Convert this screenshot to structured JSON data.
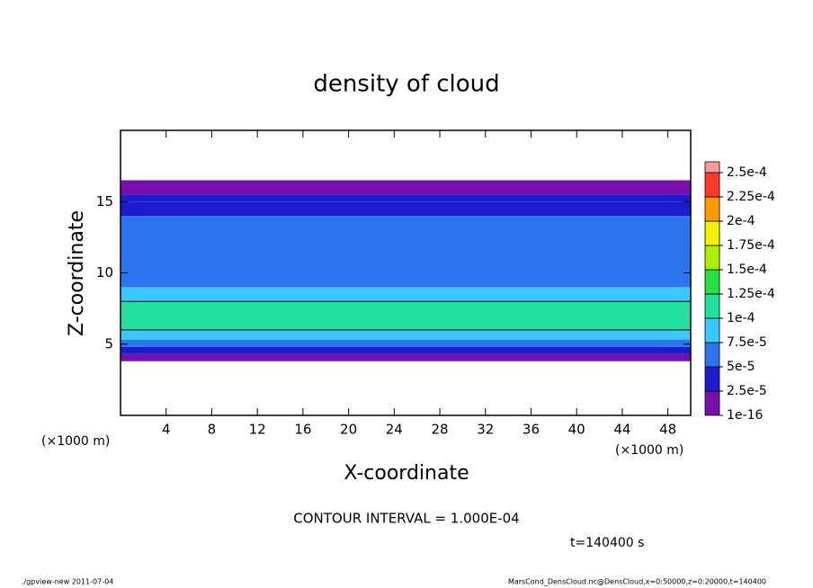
{
  "chart_data": {
    "type": "heatmap_profile",
    "title": "density of cloud",
    "xlabel": "X-coordinate",
    "ylabel": "Z-coordinate",
    "x_unit": "(×1000 m)",
    "y_unit": "(×1000 m)",
    "xlim": [
      0,
      50
    ],
    "ylim": [
      0,
      20
    ],
    "xticks": [
      4,
      8,
      12,
      16,
      20,
      24,
      28,
      32,
      36,
      40,
      44,
      48
    ],
    "yticks": [
      5,
      10,
      15
    ],
    "z": [
      3.8,
      4.3,
      4.8,
      5.3,
      6.0,
      8.0,
      9.0,
      14.0,
      15.0,
      15.5,
      16.5
    ],
    "density": [
      1e-05,
      3e-05,
      6e-05,
      8.5e-05,
      0.00011,
      8e-05,
      6e-05,
      4e-05,
      3e-05,
      1e-05
    ],
    "contour_levels": [
      0.0001
    ],
    "levels": [
      {
        "value": 1e-16,
        "label": "1e-16"
      },
      {
        "value": 2.5e-05,
        "label": "2.5e-5"
      },
      {
        "value": 5e-05,
        "label": "5e-5"
      },
      {
        "value": 7.5e-05,
        "label": "7.5e-5"
      },
      {
        "value": 0.0001,
        "label": "1e-4"
      },
      {
        "value": 0.000125,
        "label": "1.25e-4"
      },
      {
        "value": 0.00015,
        "label": "1.5e-4"
      },
      {
        "value": 0.000175,
        "label": "1.75e-4"
      },
      {
        "value": 0.0002,
        "label": "2e-4"
      },
      {
        "value": 0.000225,
        "label": "2.25e-4"
      },
      {
        "value": 0.00025,
        "label": "2.5e-4"
      }
    ],
    "colors": [
      "#7a0fb0",
      "#1c1ccf",
      "#2c74f0",
      "#38c8ff",
      "#22e0a0",
      "#28e040",
      "#a8f000",
      "#f0f000",
      "#ff9a00",
      "#ff3a2a",
      "#ff9a9a"
    ],
    "annotations": [
      "CONTOUR INTERVAL = 1.000E-04",
      "t=140400 s"
    ],
    "footer_left": "./gpview-new  2011-07-04",
    "footer_right": "MarsCond_DensCloud.nc@DensCloud,x=0:50000,z=0:20000,t=140400"
  }
}
